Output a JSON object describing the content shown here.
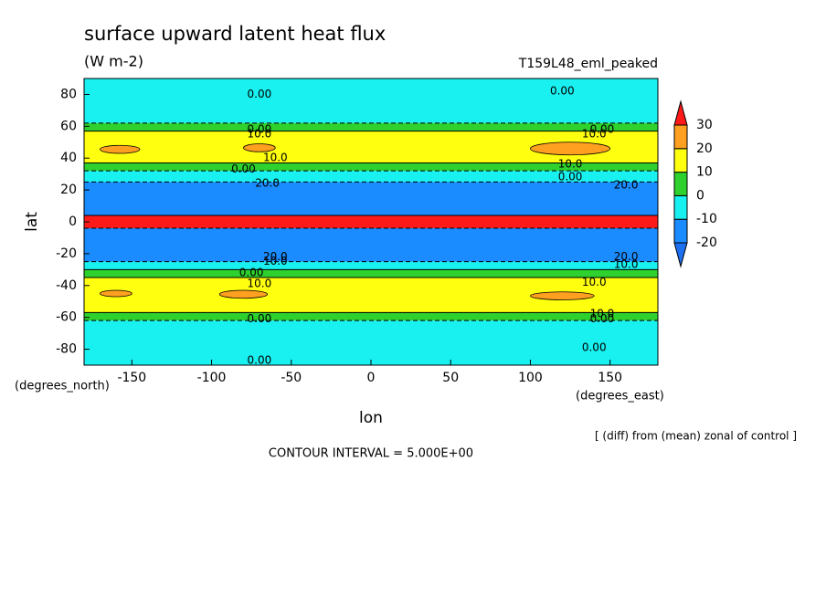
{
  "chart_data": {
    "type": "contour",
    "title": "surface upward latent heat flux",
    "subtitle": "(W m-2)",
    "dataset": "T159L48_eml_peaked",
    "x_label": "lon",
    "y_label": "lat",
    "x_units": "(degrees_east)",
    "y_units": "(degrees_north)",
    "note": "[ (diff) from (mean) zonal of control ]",
    "contour_interval": "CONTOUR INTERVAL = 5.000E+00",
    "xlim": [
      -180,
      180
    ],
    "ylim": [
      -90,
      90
    ],
    "xticks": [
      -150,
      -100,
      -50,
      0,
      50,
      100,
      150
    ],
    "yticks": [
      -80,
      -60,
      -40,
      -20,
      0,
      20,
      40,
      60,
      80
    ],
    "levels": [
      -20,
      -10,
      0,
      10,
      20,
      30
    ],
    "colors": [
      "#1c70f0",
      "#1a8cff",
      "#19f0f0",
      "#2ed12e",
      "#ffff10",
      "#ffa020",
      "#ff1a1a"
    ],
    "lat_edges": [
      90,
      62,
      57,
      37,
      32,
      25,
      4,
      -4,
      -25,
      -30,
      -35,
      -57,
      -62,
      -90
    ],
    "values": [
      -4,
      4,
      14,
      5,
      -5,
      -15,
      35,
      -15,
      -5,
      5,
      14,
      4,
      -4
    ],
    "patches": [
      {
        "lon": [
          -170,
          -145
        ],
        "lat": [
          43,
          48
        ],
        "value": 22
      },
      {
        "lon": [
          -80,
          -60
        ],
        "lat": [
          44,
          49
        ],
        "value": 22
      },
      {
        "lon": [
          100,
          150
        ],
        "lat": [
          42,
          50
        ],
        "value": 22
      },
      {
        "lon": [
          -170,
          -150
        ],
        "lat": [
          -47,
          -43
        ],
        "value": 22
      },
      {
        "lon": [
          -95,
          -65
        ],
        "lat": [
          -48,
          -43
        ],
        "value": 22
      },
      {
        "lon": [
          100,
          140
        ],
        "lat": [
          -49,
          -44
        ],
        "value": 22
      }
    ],
    "annotations": [
      {
        "text": "0.00",
        "lon": -70,
        "lat": 80
      },
      {
        "text": "0.00",
        "lon": 120,
        "lat": 82
      },
      {
        "text": "0.00",
        "lon": -70,
        "lat": 58
      },
      {
        "text": "0.00",
        "lon": 145,
        "lat": 58
      },
      {
        "text": "10.0",
        "lon": -70,
        "lat": 55
      },
      {
        "text": "10.0",
        "lon": 140,
        "lat": 55
      },
      {
        "text": "0.00",
        "lon": -80,
        "lat": 33
      },
      {
        "text": "10.0",
        "lon": -60,
        "lat": 40
      },
      {
        "text": "10.0",
        "lon": 125,
        "lat": 36
      },
      {
        "text": "0.00",
        "lon": 125,
        "lat": 28
      },
      {
        "text": "20.0",
        "lon": -65,
        "lat": 24
      },
      {
        "text": "20.0",
        "lon": 160,
        "lat": 23
      },
      {
        "text": "20.0",
        "lon": -60,
        "lat": -22
      },
      {
        "text": "20.0",
        "lon": 160,
        "lat": -22
      },
      {
        "text": "10.0",
        "lon": -60,
        "lat": -25
      },
      {
        "text": "10.0",
        "lon": 160,
        "lat": -27
      },
      {
        "text": "0.00",
        "lon": -75,
        "lat": -32
      },
      {
        "text": "10.0",
        "lon": -70,
        "lat": -39
      },
      {
        "text": "10.0",
        "lon": 140,
        "lat": -38
      },
      {
        "text": "0.00",
        "lon": -70,
        "lat": -61
      },
      {
        "text": "0.00",
        "lon": 145,
        "lat": -61
      },
      {
        "text": "10.0",
        "lon": 145,
        "lat": -58
      },
      {
        "text": "0.00",
        "lon": 140,
        "lat": -79
      },
      {
        "text": "0.00",
        "lon": -70,
        "lat": -87
      }
    ]
  }
}
